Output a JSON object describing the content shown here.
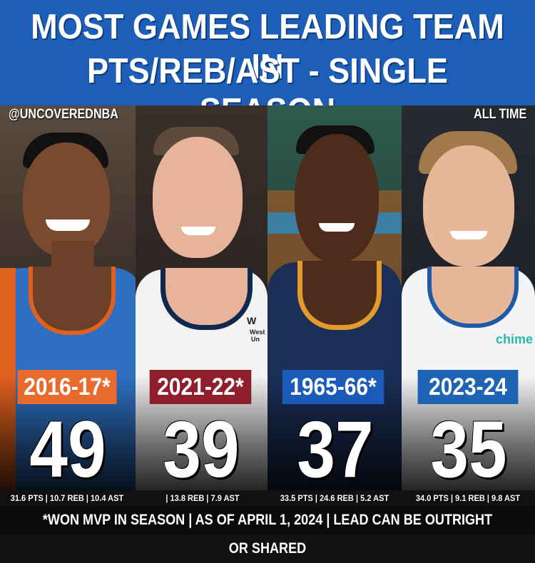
{
  "header": {
    "title_line1": "MOST GAMES LEADING TEAM IN",
    "title_line2": "PTS/REB/AST - SINGLE SEASON"
  },
  "handle": "@UNCOVEREDNBA",
  "scope": "ALL TIME",
  "players": [
    {
      "season": "2016-17*",
      "count": "49",
      "stats": "31.6 PTS | 10.7 REB | 10.4 AST",
      "label_color": "#e86a2c"
    },
    {
      "season": "2021-22*",
      "count": "39",
      "stats": "| 13.8 REB | 7.9 AST",
      "label_color": "#8f1d2c"
    },
    {
      "season": "1965-66*",
      "count": "37",
      "stats": "33.5 PTS | 24.6 REB | 5.2 AST",
      "label_color": "#1a5ab8"
    },
    {
      "season": "2023-24",
      "count": "35",
      "stats": "34.0 PTS | 9.1 REB | 9.8 AST",
      "label_color": "#1f63b5"
    }
  ],
  "jersey_text": {
    "sponsor": "chime",
    "wordmark_1": "W",
    "wordmark_2": "West",
    "wordmark_3": "Un"
  },
  "footer": "*WON MVP IN SEASON | AS OF APRIL 1, 2024 | LEAD CAN BE OUTRIGHT OR SHARED"
}
